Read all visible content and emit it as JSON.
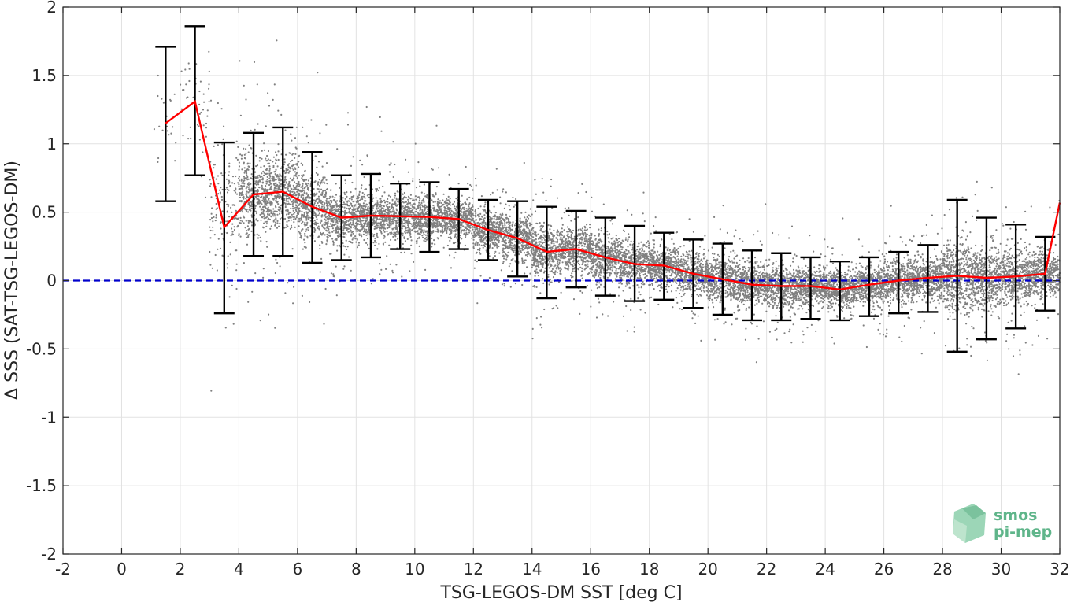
{
  "chart_data": {
    "type": "scatter",
    "title": "",
    "xlabel": "TSG-LEGOS-DM SST [deg C]",
    "ylabel": "Δ SSS (SAT-TSG-LEGOS-DM)",
    "xlim": [
      -2,
      32
    ],
    "ylim": [
      -2,
      2
    ],
    "xticks": [
      -2,
      0,
      2,
      4,
      6,
      8,
      10,
      12,
      14,
      16,
      18,
      20,
      22,
      24,
      26,
      28,
      30,
      32
    ],
    "yticks": [
      -2,
      -1.5,
      -1,
      -0.5,
      0,
      0.5,
      1,
      1.5,
      2
    ],
    "xtick_labels": [
      "-2",
      "0",
      "2",
      "4",
      "6",
      "8",
      "10",
      "12",
      "14",
      "16",
      "18",
      "20",
      "22",
      "24",
      "26",
      "28",
      "30",
      "32"
    ],
    "ytick_labels": [
      "-2",
      "-1.5",
      "-1",
      "-0.5",
      "0",
      "0.5",
      "1",
      "1.5",
      "2"
    ],
    "grid": true,
    "colors": {
      "scatter": "#808080",
      "mean_line": "#ff0000",
      "error_bars": "#000000",
      "zero_line": "#0000cc",
      "grid": "#e2e2e2",
      "axis": "#262626"
    },
    "binned_stats": {
      "x": [
        1.5,
        2.5,
        3.5,
        4.5,
        5.5,
        6.5,
        7.5,
        8.5,
        9.5,
        10.5,
        11.5,
        12.5,
        13.5,
        14.5,
        15.5,
        16.5,
        17.5,
        18.5,
        19.5,
        20.5,
        21.5,
        22.5,
        23.5,
        24.5,
        25.5,
        26.5,
        27.5,
        28.5,
        29.5,
        30.5,
        31.5
      ],
      "mean": [
        1.15,
        1.31,
        0.39,
        0.63,
        0.65,
        0.54,
        0.46,
        0.475,
        0.47,
        0.465,
        0.45,
        0.37,
        0.31,
        0.21,
        0.23,
        0.17,
        0.12,
        0.11,
        0.05,
        0.01,
        -0.03,
        -0.04,
        -0.04,
        -0.065,
        -0.03,
        0.0,
        0.02,
        0.035,
        0.02,
        0.03,
        0.05
      ],
      "upper": [
        1.71,
        1.86,
        1.01,
        1.08,
        1.12,
        0.94,
        0.77,
        0.78,
        0.71,
        0.72,
        0.67,
        0.59,
        0.58,
        0.54,
        0.51,
        0.46,
        0.4,
        0.35,
        0.3,
        0.27,
        0.22,
        0.2,
        0.17,
        0.14,
        0.17,
        0.21,
        0.26,
        0.59,
        0.46,
        0.41,
        0.32
      ],
      "lower": [
        0.58,
        0.77,
        -0.24,
        0.18,
        0.18,
        0.13,
        0.15,
        0.17,
        0.23,
        0.21,
        0.23,
        0.15,
        0.03,
        -0.13,
        -0.05,
        -0.11,
        -0.15,
        -0.14,
        -0.2,
        -0.25,
        -0.29,
        -0.29,
        -0.28,
        -0.29,
        -0.26,
        -0.24,
        -0.23,
        -0.52,
        -0.43,
        -0.35,
        -0.22
      ],
      "mean_line_end": {
        "x": 32,
        "y": 0.57
      }
    },
    "zero_line": {
      "y": 0,
      "style": "dashed"
    },
    "scatter_density": {
      "description_of_cloud_center_and_spread_by_x": true,
      "center": [
        [
          1.5,
          1.15
        ],
        [
          2.5,
          1.3
        ],
        [
          3.5,
          0.55
        ],
        [
          4.5,
          0.63
        ],
        [
          5.5,
          0.65
        ],
        [
          6.5,
          0.54
        ],
        [
          7.5,
          0.46
        ],
        [
          8.5,
          0.47
        ],
        [
          9.5,
          0.47
        ],
        [
          10.5,
          0.46
        ],
        [
          11.5,
          0.45
        ],
        [
          12.5,
          0.37
        ],
        [
          13.5,
          0.31
        ],
        [
          14.5,
          0.21
        ],
        [
          15.5,
          0.23
        ],
        [
          16.5,
          0.17
        ],
        [
          17.5,
          0.12
        ],
        [
          18.5,
          0.11
        ],
        [
          19.5,
          0.05
        ],
        [
          20.5,
          0.01
        ],
        [
          21.5,
          -0.03
        ],
        [
          22.5,
          -0.04
        ],
        [
          23.5,
          -0.04
        ],
        [
          24.5,
          -0.06
        ],
        [
          25.5,
          -0.03
        ],
        [
          26.5,
          0.0
        ],
        [
          27.5,
          0.02
        ],
        [
          28.5,
          0.03
        ],
        [
          29.5,
          0.02
        ],
        [
          30.5,
          0.03
        ],
        [
          31.5,
          0.05
        ]
      ],
      "spread": [
        0.3,
        0.3,
        0.38,
        0.25,
        0.24,
        0.22,
        0.17,
        0.17,
        0.14,
        0.14,
        0.13,
        0.13,
        0.15,
        0.17,
        0.15,
        0.15,
        0.14,
        0.13,
        0.13,
        0.14,
        0.13,
        0.13,
        0.12,
        0.12,
        0.12,
        0.13,
        0.14,
        0.22,
        0.2,
        0.17,
        0.15
      ],
      "weight": [
        0.05,
        0.1,
        0.35,
        1,
        1,
        1,
        1,
        1,
        1,
        1,
        1,
        1,
        1,
        1,
        1,
        1,
        1,
        1,
        1,
        1,
        1,
        1,
        1,
        1,
        1,
        1,
        1,
        1.1,
        1.1,
        1.1,
        1
      ]
    }
  },
  "logo": {
    "line1": "smos",
    "line2": "pi-mep",
    "icon": "smos-pimep-logo-icon",
    "color": "#5fb58a"
  }
}
